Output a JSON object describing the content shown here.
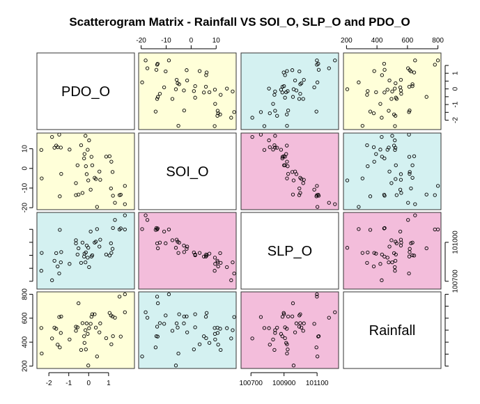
{
  "chart_data": {
    "type": "scatter",
    "title": "Scatterogram Matrix - Rainfall VS SOI_O, SLP_O and PDO_O",
    "variables": [
      "PDO_O",
      "SOI_O",
      "SLP_O",
      "Rainfall"
    ],
    "axes": {
      "PDO_O": {
        "lim": [
          -2.6,
          2.3
        ],
        "ticks": [
          -2,
          -1,
          0,
          1
        ],
        "tick_labels": [
          "-2",
          "-1",
          "0",
          "1"
        ]
      },
      "SOI_O": {
        "lim": [
          -21,
          18
        ],
        "ticks": [
          -20,
          -10,
          0,
          10
        ],
        "tick_labels": [
          "-20",
          "-10",
          "0",
          "10"
        ]
      },
      "SLP_O": {
        "lim": [
          100640,
          101230
        ],
        "ticks": [
          100700,
          100900,
          101100
        ],
        "tick_labels": [
          "100700",
          "100900",
          "101100"
        ],
        "left_ticks": [
          100700,
          100800,
          100900,
          101000,
          101100
        ],
        "right_ticks": [
          100700,
          101000
        ]
      },
      "Rainfall": {
        "lim": [
          180,
          820
        ],
        "ticks": [
          200,
          400,
          600,
          800
        ],
        "tick_labels": [
          "200",
          "400",
          "600",
          "800"
        ],
        "right_ticks": [
          200,
          300,
          400,
          500,
          600,
          700,
          800
        ]
      }
    },
    "panel_colors": {
      "PDO_O|SOI_O": "#ffffd9",
      "PDO_O|SLP_O": "#d4f1f1",
      "PDO_O|Rainfall": "#ffffd9",
      "SOI_O|SLP_O": "#f3bddb",
      "SOI_O|Rainfall": "#d4f1f1",
      "SLP_O|Rainfall": "#f3bddb",
      "diagonal": "#ffffff"
    },
    "grid": false,
    "legend": "none",
    "observations": [
      {
        "PDO_O": -2.38,
        "SOI_O": 9.4,
        "SLP_O": 100781,
        "Rainfall": 518
      },
      {
        "PDO_O": -2.36,
        "SOI_O": -5.1,
        "SLP_O": 100918,
        "Rainfall": 305
      },
      {
        "PDO_O": -1.84,
        "SOI_O": 16.0,
        "SLP_O": 100708,
        "Rainfall": 431
      },
      {
        "PDO_O": -1.72,
        "SOI_O": 10.5,
        "SLP_O": 100858,
        "Rainfall": 521
      },
      {
        "PDO_O": -1.63,
        "SOI_O": 11.6,
        "SLP_O": 100917,
        "Rainfall": 512
      },
      {
        "PDO_O": -1.56,
        "SOI_O": 10.8,
        "SLP_O": 100814,
        "Rainfall": 379
      },
      {
        "PDO_O": -1.48,
        "SOI_O": 17.2,
        "SLP_O": 100760,
        "Rainfall": 610
      },
      {
        "PDO_O": -1.45,
        "SOI_O": -14.2,
        "SLP_O": 101096,
        "Rainfall": 356
      },
      {
        "PDO_O": -1.4,
        "SOI_O": 10.6,
        "SLP_O": 100846,
        "Rainfall": 477
      },
      {
        "PDO_O": -1.38,
        "SOI_O": -2.8,
        "SLP_O": 100925,
        "Rainfall": 614
      },
      {
        "PDO_O": -0.96,
        "SOI_O": 9.6,
        "SLP_O": 100834,
        "Rainfall": 422
      },
      {
        "PDO_O": -0.64,
        "SOI_O": -7.5,
        "SLP_O": 101016,
        "Rainfall": 495
      },
      {
        "PDO_O": -0.64,
        "SOI_O": -13.6,
        "SLP_O": 100992,
        "Rainfall": 529
      },
      {
        "PDO_O": -0.56,
        "SOI_O": 1.6,
        "SLP_O": 100906,
        "Rainfall": 524
      },
      {
        "PDO_O": -0.51,
        "SOI_O": -13.3,
        "SLP_O": 100954,
        "Rainfall": 725
      },
      {
        "PDO_O": -0.38,
        "SOI_O": 11.8,
        "SLP_O": 100842,
        "Rainfall": 335
      },
      {
        "PDO_O": -0.31,
        "SOI_O": -12.5,
        "SLP_O": 100998,
        "Rainfall": 559
      },
      {
        "PDO_O": -0.23,
        "SOI_O": 5.1,
        "SLP_O": 100890,
        "Rainfall": 449
      },
      {
        "PDO_O": -0.21,
        "SOI_O": 7.3,
        "SLP_O": 100913,
        "Rainfall": 394
      },
      {
        "PDO_O": -0.16,
        "SOI_O": 16.6,
        "SLP_O": 100846,
        "Rainfall": 500
      },
      {
        "PDO_O": -0.14,
        "SOI_O": 1.1,
        "SLP_O": 100922,
        "Rainfall": 339
      },
      {
        "PDO_O": -0.1,
        "SOI_O": -2.9,
        "SLP_O": 100975,
        "Rainfall": 557
      },
      {
        "PDO_O": -0.05,
        "SOI_O": 9.5,
        "SLP_O": 100882,
        "Rainfall": 469
      },
      {
        "PDO_O": -0.02,
        "SOI_O": -6.1,
        "SLP_O": 100958,
        "Rainfall": 205
      },
      {
        "PDO_O": 0.02,
        "SOI_O": 14.3,
        "SLP_O": 100809,
        "Rainfall": 517
      },
      {
        "PDO_O": 0.1,
        "SOI_O": -10.8,
        "SLP_O": 101083,
        "Rainfall": 553
      },
      {
        "PDO_O": 0.14,
        "SOI_O": 5.9,
        "SLP_O": 100891,
        "Rainfall": 612
      },
      {
        "PDO_O": 0.18,
        "SOI_O": 1.6,
        "SLP_O": 100900,
        "Rainfall": 633
      },
      {
        "PDO_O": 0.3,
        "SOI_O": -4.8,
        "SLP_O": 100998,
        "Rainfall": 633
      },
      {
        "PDO_O": 0.36,
        "SOI_O": -5.4,
        "SLP_O": 101005,
        "Rainfall": 522
      },
      {
        "PDO_O": 0.42,
        "SOI_O": -19.6,
        "SLP_O": 101102,
        "Rainfall": 280
      },
      {
        "PDO_O": 0.54,
        "SOI_O": -1.6,
        "SLP_O": 100967,
        "Rainfall": 482
      },
      {
        "PDO_O": 0.58,
        "SOI_O": -5.8,
        "SLP_O": 101020,
        "Rainfall": 557
      },
      {
        "PDO_O": 0.88,
        "SOI_O": 6.0,
        "SLP_O": 100906,
        "Rainfall": 433
      },
      {
        "PDO_O": 1.05,
        "SOI_O": 6.2,
        "SLP_O": 100898,
        "Rainfall": 644
      },
      {
        "PDO_O": 1.12,
        "SOI_O": -10.2,
        "SLP_O": 100993,
        "Rainfall": 623
      },
      {
        "PDO_O": 1.14,
        "SOI_O": 3.4,
        "SLP_O": 100918,
        "Rainfall": 382
      },
      {
        "PDO_O": 1.2,
        "SOI_O": -1.8,
        "SLP_O": 100950,
        "Rainfall": 615
      },
      {
        "PDO_O": 1.22,
        "SOI_O": -13.9,
        "SLP_O": 101110,
        "Rainfall": 450
      },
      {
        "PDO_O": 1.32,
        "SOI_O": -17.5,
        "SLP_O": 101172,
        "Rainfall": 604
      },
      {
        "PDO_O": 1.55,
        "SOI_O": -13.6,
        "SLP_O": 101099,
        "Rainfall": 780
      },
      {
        "PDO_O": 1.61,
        "SOI_O": -13.4,
        "SLP_O": 101107,
        "Rainfall": 447
      },
      {
        "PDO_O": 1.82,
        "SOI_O": -8.9,
        "SLP_O": 101099,
        "Rainfall": 800
      },
      {
        "PDO_O": 1.82,
        "SOI_O": -18.2,
        "SLP_O": 101208,
        "Rainfall": 650
      }
    ]
  }
}
